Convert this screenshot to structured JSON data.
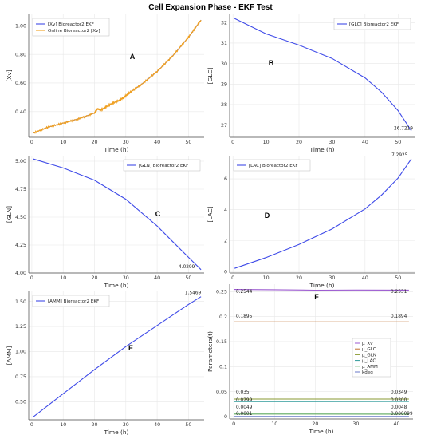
{
  "figure": {
    "title": "Cell Expansion Phase - EKF Test"
  },
  "chart_data": [
    {
      "type": "line",
      "panel_label": "A",
      "xlabel": "Time (h)",
      "ylabel": "[Xv]",
      "xlim": [
        -1,
        55
      ],
      "ylim": [
        0.22,
        1.08
      ],
      "xticks": [
        0,
        10,
        20,
        30,
        40,
        50
      ],
      "yticks": [
        0.2,
        0.4,
        0.6,
        0.8,
        1.0
      ],
      "legend_position": "top-left",
      "series": [
        {
          "name": "[Xv] Bioreactor2 EKF",
          "color": "#3F4BE8",
          "x": [
            0.5,
            5,
            10,
            15,
            20,
            21,
            22,
            25,
            28,
            30,
            31,
            35,
            40,
            45,
            50,
            54
          ],
          "y": [
            0.25,
            0.29,
            0.32,
            0.35,
            0.39,
            0.42,
            0.41,
            0.45,
            0.48,
            0.51,
            0.53,
            0.59,
            0.68,
            0.79,
            0.92,
            1.04
          ]
        },
        {
          "name": "Online Bioreactor2 [Xv]",
          "color": "#F0A020",
          "noise": 0.006,
          "x": [
            0.5,
            5,
            10,
            15,
            20,
            21,
            22,
            25,
            28,
            30,
            31,
            35,
            40,
            45,
            50,
            54
          ],
          "y": [
            0.25,
            0.29,
            0.32,
            0.35,
            0.39,
            0.42,
            0.41,
            0.45,
            0.48,
            0.51,
            0.53,
            0.59,
            0.68,
            0.79,
            0.92,
            1.04
          ]
        }
      ]
    },
    {
      "type": "line",
      "panel_label": "B",
      "xlabel": "Time (h)",
      "ylabel": "[GLC]",
      "xlim": [
        -1,
        55
      ],
      "ylim": [
        26.4,
        32.4
      ],
      "xticks": [
        0,
        10,
        20,
        30,
        40,
        50
      ],
      "yticks": [
        27,
        28,
        29,
        30,
        31,
        32
      ],
      "legend_position": "top-right",
      "annotations": [
        {
          "text": "26.7219",
          "x": 53.5,
          "y": 26.7
        }
      ],
      "series": [
        {
          "name": "[GLC] Bioreactor2 EKF",
          "color": "#3F4BE8",
          "x": [
            0.5,
            10,
            20,
            30,
            40,
            45,
            50,
            54
          ],
          "y": [
            32.2,
            31.45,
            30.9,
            30.25,
            29.3,
            28.6,
            27.7,
            26.72
          ]
        }
      ]
    },
    {
      "type": "line",
      "panel_label": "C",
      "xlabel": "Time (h)",
      "ylabel": "[GLN]",
      "xlim": [
        -1,
        55
      ],
      "ylim": [
        4.0,
        5.05
      ],
      "xticks": [
        0,
        10,
        20,
        30,
        40,
        50
      ],
      "yticks": [
        4.0,
        4.25,
        4.5,
        4.75,
        5.0
      ],
      "legend_position": "top-right",
      "annotations": [
        {
          "text": "4.0299",
          "x": 50,
          "y": 4.03
        }
      ],
      "series": [
        {
          "name": "[GLN] Bioreactor2 EKF",
          "color": "#3F4BE8",
          "x": [
            0.5,
            10,
            20,
            30,
            40,
            45,
            50,
            54
          ],
          "y": [
            5.02,
            4.94,
            4.83,
            4.66,
            4.42,
            4.28,
            4.14,
            4.03
          ]
        }
      ]
    },
    {
      "type": "line",
      "panel_label": "D",
      "xlabel": "Time (h)",
      "ylabel": "[LAC]",
      "xlim": [
        -1,
        55
      ],
      "ylim": [
        -0.1,
        7.5
      ],
      "xticks": [
        0,
        10,
        20,
        30,
        40,
        50
      ],
      "yticks": [
        0,
        2,
        4,
        6
      ],
      "legend_position": "top-left",
      "annotations": [
        {
          "text": "7.2925",
          "x": 51,
          "y": 7.29
        }
      ],
      "series": [
        {
          "name": "[LAC] Bioreactor2 EKF",
          "color": "#3F4BE8",
          "x": [
            0.5,
            10,
            20,
            30,
            40,
            45,
            50,
            54
          ],
          "y": [
            0.2,
            0.9,
            1.75,
            2.75,
            4.05,
            4.95,
            6.05,
            7.29
          ]
        }
      ]
    },
    {
      "type": "line",
      "panel_label": "E",
      "xlabel": "Time (h)",
      "ylabel": "[AMM]",
      "xlim": [
        -1,
        55
      ],
      "ylim": [
        0.32,
        1.6
      ],
      "xticks": [
        0,
        10,
        20,
        30,
        40,
        50
      ],
      "yticks": [
        0.5,
        0.75,
        1.0,
        1.25,
        1.5
      ],
      "legend_position": "top-left",
      "annotations": [
        {
          "text": "1.5469",
          "x": 52,
          "y": 1.547
        }
      ],
      "series": [
        {
          "name": "[AMM] Bioreactor2 EKF",
          "color": "#3F4BE8",
          "x": [
            0.5,
            10,
            20,
            30,
            40,
            50,
            54
          ],
          "y": [
            0.35,
            0.58,
            0.82,
            1.05,
            1.26,
            1.47,
            1.547
          ]
        }
      ]
    },
    {
      "type": "line",
      "panel_label": "F",
      "xlabel": "Time (h)",
      "ylabel": "Parameters(t)",
      "xlim": [
        -1,
        44
      ],
      "ylim": [
        -0.005,
        0.265
      ],
      "xticks": [
        0,
        10,
        20,
        30,
        40
      ],
      "yticks": [
        0.0,
        0.05,
        0.1,
        0.15,
        0.2,
        0.25
      ],
      "legend_position": "right",
      "annotations": [
        {
          "text": "0.2544",
          "x": 0,
          "y": 0.2544
        },
        {
          "text": "0.2531",
          "x": 40,
          "y": 0.2531
        },
        {
          "text": "0.1895",
          "x": 0,
          "y": 0.1895
        },
        {
          "text": "0.1894",
          "x": 40,
          "y": 0.1894
        },
        {
          "text": "0.035",
          "x": 0,
          "y": 0.035
        },
        {
          "text": "0.0349",
          "x": 40,
          "y": 0.0349
        },
        {
          "text": "0.0299",
          "x": 0,
          "y": 0.0299
        },
        {
          "text": "0.0300",
          "x": 40,
          "y": 0.03
        },
        {
          "text": "0.0049",
          "x": 0,
          "y": 0.0049
        },
        {
          "text": "0.0048",
          "x": 40,
          "y": 0.0048
        },
        {
          "text": "0.0001",
          "x": 0,
          "y": 0.0001
        },
        {
          "text": "0.000099",
          "x": 40,
          "y": 9.9e-05
        }
      ],
      "series": [
        {
          "name": "μ_Xv",
          "color": "#9B59D0",
          "x": [
            0,
            10,
            20,
            30,
            43
          ],
          "y": [
            0.2544,
            0.254,
            0.253,
            0.2533,
            0.2531
          ]
        },
        {
          "name": "μ_GLC",
          "color": "#C07030",
          "x": [
            0,
            43
          ],
          "y": [
            0.1895,
            0.1894
          ]
        },
        {
          "name": "μ_GLN",
          "color": "#8A9A30",
          "x": [
            0,
            43
          ],
          "y": [
            0.035,
            0.0349
          ]
        },
        {
          "name": "μ_LAC",
          "color": "#2E9A9A",
          "x": [
            0,
            43
          ],
          "y": [
            0.0299,
            0.03
          ]
        },
        {
          "name": "μ_AMM",
          "color": "#5BA85B",
          "x": [
            0,
            43
          ],
          "y": [
            0.0049,
            0.0048
          ]
        },
        {
          "name": "kdeg",
          "color": "#6A7AC8",
          "x": [
            0,
            43
          ],
          "y": [
            0.0001,
            9.9e-05
          ]
        }
      ]
    }
  ]
}
